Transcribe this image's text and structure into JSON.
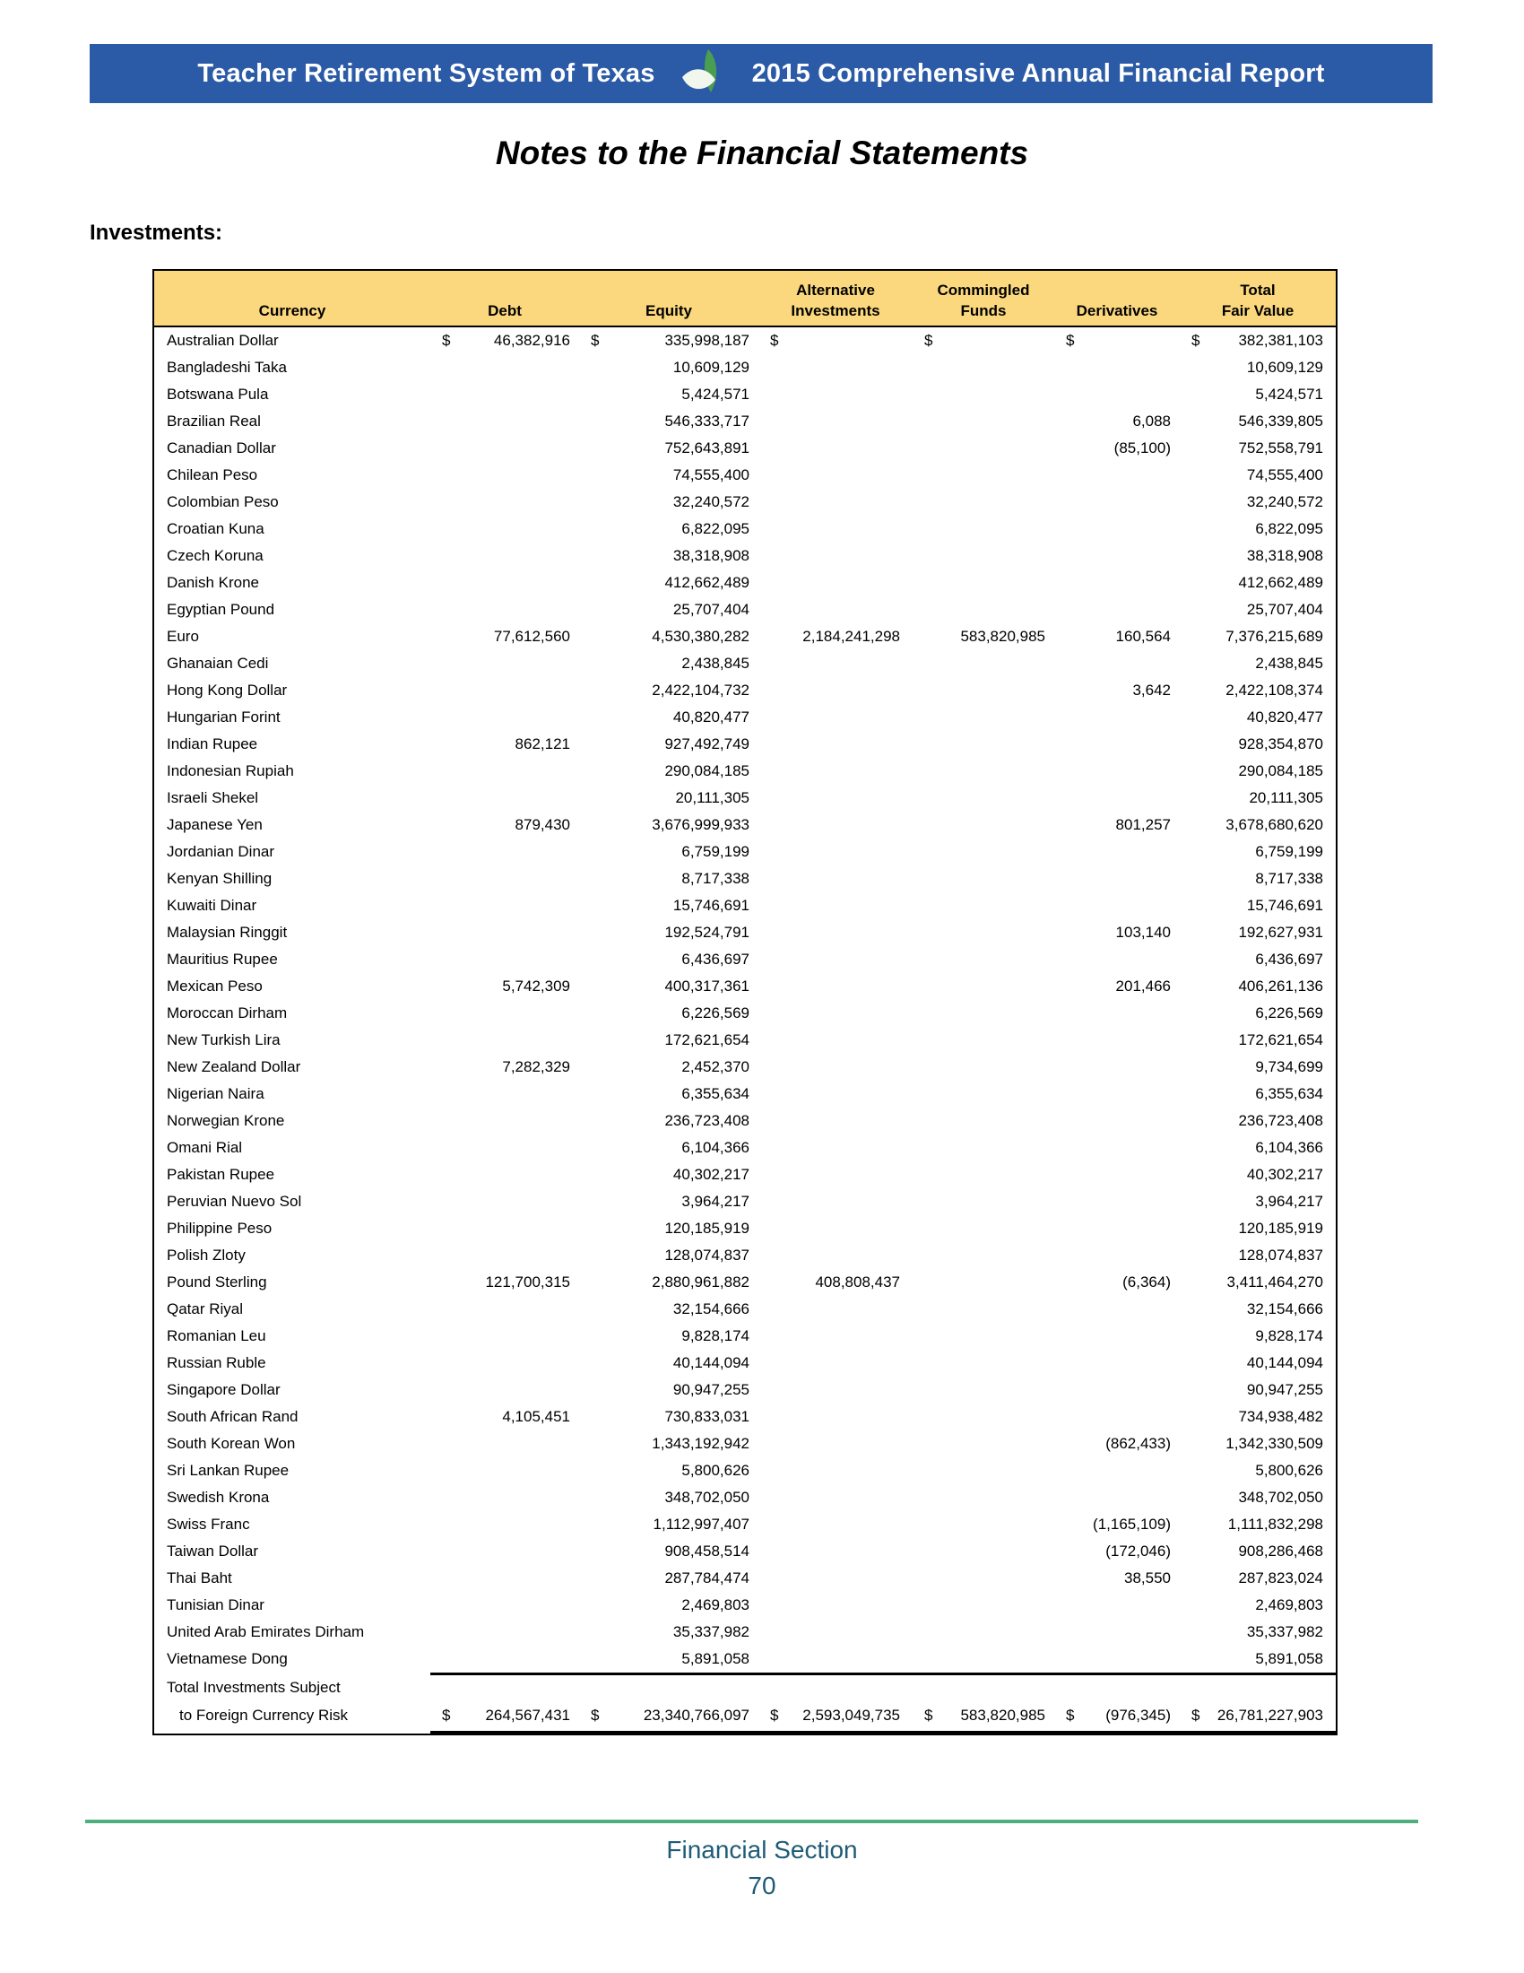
{
  "colors": {
    "banner_bg": "#2b5aa6",
    "banner_text": "#ffffff",
    "table_header_bg": "#fbd87e",
    "table_border": "#000000",
    "footer_rule_green": "#4fae7d",
    "footer_text_blue": "#1e5b76",
    "leaf_green": "#4a9e52",
    "leaf_white": "#f2f7ee"
  },
  "banner": {
    "org": "Teacher Retirement System of Texas",
    "report": "2015 Comprehensive Annual Financial Report"
  },
  "page_title": "Notes to the Financial Statements",
  "investments_label": "Investments:",
  "table": {
    "currency_symbol": "$",
    "headers": {
      "currency": "Currency",
      "debt": "Debt",
      "equity": "Equity",
      "alternative_line1": "Alternative",
      "alternative_line2": "Investments",
      "commingled_line1": "Commingled",
      "commingled_line2": "Funds",
      "derivatives": "Derivatives",
      "total_line1": "Total",
      "total_line2": "Fair Value"
    },
    "rows": [
      {
        "currency": "Australian Dollar",
        "debt": "46,382,916",
        "equity": "335,998,187",
        "alternative": "",
        "commingled": "",
        "derivatives": "",
        "total": "382,381,103",
        "usd": true
      },
      {
        "currency": "Bangladeshi Taka",
        "debt": "",
        "equity": "10,609,129",
        "alternative": "",
        "commingled": "",
        "derivatives": "",
        "total": "10,609,129"
      },
      {
        "currency": "Botswana Pula",
        "debt": "",
        "equity": "5,424,571",
        "alternative": "",
        "commingled": "",
        "derivatives": "",
        "total": "5,424,571"
      },
      {
        "currency": "Brazilian Real",
        "debt": "",
        "equity": "546,333,717",
        "alternative": "",
        "commingled": "",
        "derivatives": "6,088",
        "total": "546,339,805"
      },
      {
        "currency": "Canadian Dollar",
        "debt": "",
        "equity": "752,643,891",
        "alternative": "",
        "commingled": "",
        "derivatives": "(85,100)",
        "total": "752,558,791"
      },
      {
        "currency": "Chilean Peso",
        "debt": "",
        "equity": "74,555,400",
        "alternative": "",
        "commingled": "",
        "derivatives": "",
        "total": "74,555,400"
      },
      {
        "currency": "Colombian Peso",
        "debt": "",
        "equity": "32,240,572",
        "alternative": "",
        "commingled": "",
        "derivatives": "",
        "total": "32,240,572"
      },
      {
        "currency": "Croatian Kuna",
        "debt": "",
        "equity": "6,822,095",
        "alternative": "",
        "commingled": "",
        "derivatives": "",
        "total": "6,822,095"
      },
      {
        "currency": "Czech Koruna",
        "debt": "",
        "equity": "38,318,908",
        "alternative": "",
        "commingled": "",
        "derivatives": "",
        "total": "38,318,908"
      },
      {
        "currency": "Danish Krone",
        "debt": "",
        "equity": "412,662,489",
        "alternative": "",
        "commingled": "",
        "derivatives": "",
        "total": "412,662,489"
      },
      {
        "currency": "Egyptian Pound",
        "debt": "",
        "equity": "25,707,404",
        "alternative": "",
        "commingled": "",
        "derivatives": "",
        "total": "25,707,404"
      },
      {
        "currency": "Euro",
        "debt": "77,612,560",
        "equity": "4,530,380,282",
        "alternative": "2,184,241,298",
        "commingled": "583,820,985",
        "derivatives": "160,564",
        "total": "7,376,215,689"
      },
      {
        "currency": "Ghanaian Cedi",
        "debt": "",
        "equity": "2,438,845",
        "alternative": "",
        "commingled": "",
        "derivatives": "",
        "total": "2,438,845"
      },
      {
        "currency": "Hong Kong Dollar",
        "debt": "",
        "equity": "2,422,104,732",
        "alternative": "",
        "commingled": "",
        "derivatives": "3,642",
        "total": "2,422,108,374"
      },
      {
        "currency": "Hungarian Forint",
        "debt": "",
        "equity": "40,820,477",
        "alternative": "",
        "commingled": "",
        "derivatives": "",
        "total": "40,820,477"
      },
      {
        "currency": "Indian Rupee",
        "debt": "862,121",
        "equity": "927,492,749",
        "alternative": "",
        "commingled": "",
        "derivatives": "",
        "total": "928,354,870"
      },
      {
        "currency": "Indonesian Rupiah",
        "debt": "",
        "equity": "290,084,185",
        "alternative": "",
        "commingled": "",
        "derivatives": "",
        "total": "290,084,185"
      },
      {
        "currency": "Israeli Shekel",
        "debt": "",
        "equity": "20,111,305",
        "alternative": "",
        "commingled": "",
        "derivatives": "",
        "total": "20,111,305"
      },
      {
        "currency": "Japanese Yen",
        "debt": "879,430",
        "equity": "3,676,999,933",
        "alternative": "",
        "commingled": "",
        "derivatives": "801,257",
        "total": "3,678,680,620"
      },
      {
        "currency": "Jordanian Dinar",
        "debt": "",
        "equity": "6,759,199",
        "alternative": "",
        "commingled": "",
        "derivatives": "",
        "total": "6,759,199"
      },
      {
        "currency": "Kenyan Shilling",
        "debt": "",
        "equity": "8,717,338",
        "alternative": "",
        "commingled": "",
        "derivatives": "",
        "total": "8,717,338"
      },
      {
        "currency": "Kuwaiti Dinar",
        "debt": "",
        "equity": "15,746,691",
        "alternative": "",
        "commingled": "",
        "derivatives": "",
        "total": "15,746,691"
      },
      {
        "currency": "Malaysian Ringgit",
        "debt": "",
        "equity": "192,524,791",
        "alternative": "",
        "commingled": "",
        "derivatives": "103,140",
        "total": "192,627,931"
      },
      {
        "currency": "Mauritius Rupee",
        "debt": "",
        "equity": "6,436,697",
        "alternative": "",
        "commingled": "",
        "derivatives": "",
        "total": "6,436,697"
      },
      {
        "currency": "Mexican Peso",
        "debt": "5,742,309",
        "equity": "400,317,361",
        "alternative": "",
        "commingled": "",
        "derivatives": "201,466",
        "total": "406,261,136"
      },
      {
        "currency": "Moroccan Dirham",
        "debt": "",
        "equity": "6,226,569",
        "alternative": "",
        "commingled": "",
        "derivatives": "",
        "total": "6,226,569"
      },
      {
        "currency": "New Turkish Lira",
        "debt": "",
        "equity": "172,621,654",
        "alternative": "",
        "commingled": "",
        "derivatives": "",
        "total": "172,621,654"
      },
      {
        "currency": "New Zealand Dollar",
        "debt": "7,282,329",
        "equity": "2,452,370",
        "alternative": "",
        "commingled": "",
        "derivatives": "",
        "total": "9,734,699"
      },
      {
        "currency": "Nigerian Naira",
        "debt": "",
        "equity": "6,355,634",
        "alternative": "",
        "commingled": "",
        "derivatives": "",
        "total": "6,355,634"
      },
      {
        "currency": "Norwegian Krone",
        "debt": "",
        "equity": "236,723,408",
        "alternative": "",
        "commingled": "",
        "derivatives": "",
        "total": "236,723,408"
      },
      {
        "currency": "Omani Rial",
        "debt": "",
        "equity": "6,104,366",
        "alternative": "",
        "commingled": "",
        "derivatives": "",
        "total": "6,104,366"
      },
      {
        "currency": "Pakistan Rupee",
        "debt": "",
        "equity": "40,302,217",
        "alternative": "",
        "commingled": "",
        "derivatives": "",
        "total": "40,302,217"
      },
      {
        "currency": "Peruvian Nuevo Sol",
        "debt": "",
        "equity": "3,964,217",
        "alternative": "",
        "commingled": "",
        "derivatives": "",
        "total": "3,964,217"
      },
      {
        "currency": "Philippine Peso",
        "debt": "",
        "equity": "120,185,919",
        "alternative": "",
        "commingled": "",
        "derivatives": "",
        "total": "120,185,919"
      },
      {
        "currency": "Polish Zloty",
        "debt": "",
        "equity": "128,074,837",
        "alternative": "",
        "commingled": "",
        "derivatives": "",
        "total": "128,074,837"
      },
      {
        "currency": "Pound Sterling",
        "debt": "121,700,315",
        "equity": "2,880,961,882",
        "alternative": "408,808,437",
        "commingled": "",
        "derivatives": "(6,364)",
        "total": "3,411,464,270"
      },
      {
        "currency": "Qatar Riyal",
        "debt": "",
        "equity": "32,154,666",
        "alternative": "",
        "commingled": "",
        "derivatives": "",
        "total": "32,154,666"
      },
      {
        "currency": "Romanian Leu",
        "debt": "",
        "equity": "9,828,174",
        "alternative": "",
        "commingled": "",
        "derivatives": "",
        "total": "9,828,174"
      },
      {
        "currency": "Russian Ruble",
        "debt": "",
        "equity": "40,144,094",
        "alternative": "",
        "commingled": "",
        "derivatives": "",
        "total": "40,144,094"
      },
      {
        "currency": "Singapore Dollar",
        "debt": "",
        "equity": "90,947,255",
        "alternative": "",
        "commingled": "",
        "derivatives": "",
        "total": "90,947,255"
      },
      {
        "currency": "South African Rand",
        "debt": "4,105,451",
        "equity": "730,833,031",
        "alternative": "",
        "commingled": "",
        "derivatives": "",
        "total": "734,938,482"
      },
      {
        "currency": "South Korean Won",
        "debt": "",
        "equity": "1,343,192,942",
        "alternative": "",
        "commingled": "",
        "derivatives": "(862,433)",
        "total": "1,342,330,509"
      },
      {
        "currency": "Sri Lankan Rupee",
        "debt": "",
        "equity": "5,800,626",
        "alternative": "",
        "commingled": "",
        "derivatives": "",
        "total": "5,800,626"
      },
      {
        "currency": "Swedish Krona",
        "debt": "",
        "equity": "348,702,050",
        "alternative": "",
        "commingled": "",
        "derivatives": "",
        "total": "348,702,050"
      },
      {
        "currency": "Swiss Franc",
        "debt": "",
        "equity": "1,112,997,407",
        "alternative": "",
        "commingled": "",
        "derivatives": "(1,165,109)",
        "total": "1,111,832,298"
      },
      {
        "currency": "Taiwan Dollar",
        "debt": "",
        "equity": "908,458,514",
        "alternative": "",
        "commingled": "",
        "derivatives": "(172,046)",
        "total": "908,286,468"
      },
      {
        "currency": "Thai Baht",
        "debt": "",
        "equity": "287,784,474",
        "alternative": "",
        "commingled": "",
        "derivatives": "38,550",
        "total": "287,823,024"
      },
      {
        "currency": "Tunisian Dinar",
        "debt": "",
        "equity": "2,469,803",
        "alternative": "",
        "commingled": "",
        "derivatives": "",
        "total": "2,469,803"
      },
      {
        "currency": "United Arab Emirates Dirham",
        "debt": "",
        "equity": "35,337,982",
        "alternative": "",
        "commingled": "",
        "derivatives": "",
        "total": "35,337,982"
      },
      {
        "currency": "Vietnamese Dong",
        "debt": "",
        "equity": "5,891,058",
        "alternative": "",
        "commingled": "",
        "derivatives": "",
        "total": "5,891,058"
      }
    ],
    "total_row": {
      "label_line1": "Total Investments Subject",
      "label_line2": "to Foreign Currency Risk",
      "debt": "264,567,431",
      "equity": "23,340,766,097",
      "alternative": "2,593,049,735",
      "commingled": "583,820,985",
      "derivatives": "(976,345)",
      "total": "26,781,227,903"
    }
  },
  "footer": {
    "section": "Financial Section",
    "page_number": "70"
  }
}
